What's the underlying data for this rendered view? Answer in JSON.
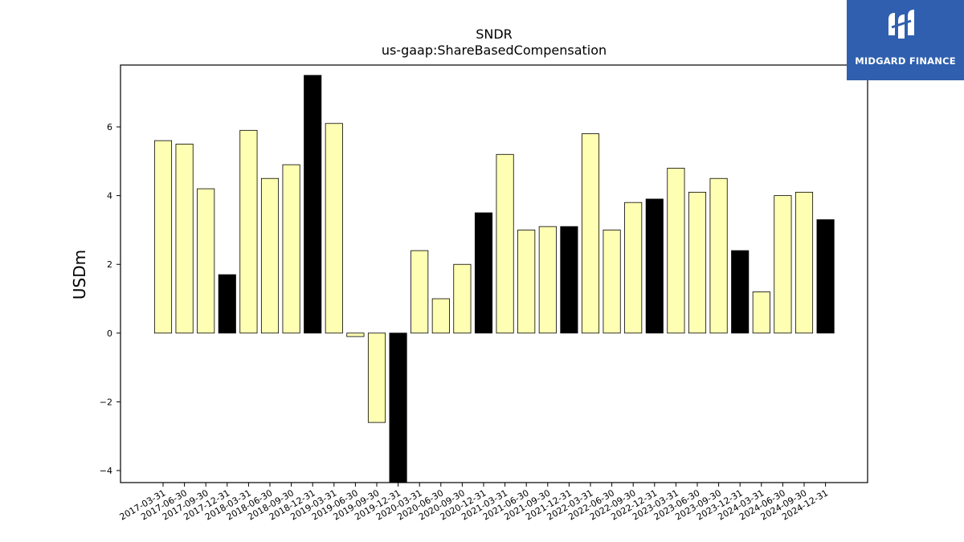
{
  "brand": {
    "name": "MIDGARD FINANCE"
  },
  "chart_data": {
    "type": "bar",
    "title": "SNDR",
    "subtitle": "us-gaap:ShareBasedCompensation",
    "ylabel": "USDm",
    "xlabel": "",
    "ylim": [
      -4.35,
      7.8
    ],
    "yticks": [
      -4,
      -2,
      0,
      2,
      4,
      6
    ],
    "grid": false,
    "colors": {
      "quarter": "#ffffb3",
      "year_end": "#000000",
      "edge": "#000000"
    },
    "categories": [
      "2017-03-31",
      "2017-06-30",
      "2017-09-30",
      "2017-12-31",
      "2018-03-31",
      "2018-06-30",
      "2018-09-30",
      "2018-12-31",
      "2019-03-31",
      "2019-06-30",
      "2019-09-30",
      "2019-12-31",
      "2020-03-31",
      "2020-06-30",
      "2020-09-30",
      "2020-12-31",
      "2021-03-31",
      "2021-06-30",
      "2021-09-30",
      "2021-12-31",
      "2022-03-31",
      "2022-06-30",
      "2022-09-30",
      "2022-12-31",
      "2023-03-31",
      "2023-06-30",
      "2023-09-30",
      "2023-12-31",
      "2024-03-31",
      "2024-06-30",
      "2024-09-30",
      "2024-12-31"
    ],
    "values": [
      5.6,
      5.5,
      4.2,
      1.7,
      5.9,
      4.5,
      4.9,
      7.5,
      6.1,
      -0.1,
      -2.6,
      -4.35,
      2.4,
      1.0,
      2.0,
      3.5,
      5.2,
      3.0,
      3.1,
      3.1,
      5.8,
      3.0,
      3.8,
      3.9,
      4.8,
      4.1,
      4.5,
      2.4,
      1.2,
      4.0,
      4.1,
      3.3
    ]
  }
}
